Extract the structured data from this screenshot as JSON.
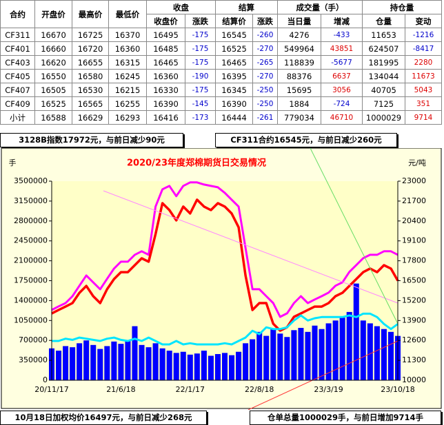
{
  "table": {
    "header_groups": [
      "合约",
      "开盘价",
      "最高价",
      "最低价",
      "收盘",
      "结算",
      "成交量（手）",
      "持仓量"
    ],
    "header_sub": [
      "收盘价",
      "涨跌",
      "结算价",
      "涨跌",
      "当日量",
      "增减",
      "仓量",
      "变动"
    ],
    "rows": [
      [
        "CF311",
        16670,
        16725,
        16370,
        16495,
        -175,
        16545,
        -260,
        4276,
        -433,
        11653,
        -1216
      ],
      [
        "CF401",
        16660,
        16720,
        16360,
        16485,
        -175,
        16525,
        -270,
        549964,
        43851,
        624507,
        -8417
      ],
      [
        "CF403",
        16620,
        16655,
        16315,
        16465,
        -175,
        16465,
        -265,
        118839,
        -5677,
        181995,
        2280
      ],
      [
        "CF405",
        16550,
        16580,
        16245,
        16360,
        -190,
        16395,
        -270,
        88376,
        6637,
        134044,
        11673
      ],
      [
        "CF407",
        16505,
        16530,
        16215,
        16330,
        -175,
        16345,
        -250,
        15695,
        3056,
        40705,
        5043
      ],
      [
        "CF409",
        16525,
        16565,
        16255,
        16390,
        -145,
        16390,
        -250,
        1884,
        -724,
        7125,
        351
      ],
      [
        "小计",
        16588,
        16629,
        16293,
        16416,
        -173,
        16444,
        -261,
        779034,
        46710,
        1000029,
        9714
      ]
    ]
  },
  "info_boxes": [
    "3128B指数17972元，与前日减少90元",
    "CF311合约16545元，与前日减少260元",
    "10月18日加权均价16497元，与前日减少268元",
    "仓单总量1000029手，与前日增加9714手"
  ],
  "chart_data": {
    "type": "combo",
    "title": "2020/23年度郑棉期货日交易情况",
    "y_label": "手",
    "y2_label": "元/吨",
    "categories": [
      "20/11/17",
      null,
      null,
      null,
      null,
      null,
      null,
      null,
      null,
      null,
      "21/6/18",
      null,
      null,
      null,
      null,
      null,
      null,
      null,
      null,
      null,
      "22/1/17",
      null,
      null,
      null,
      null,
      null,
      null,
      null,
      null,
      null,
      "22/8/18",
      null,
      null,
      null,
      null,
      null,
      null,
      null,
      null,
      null,
      "23/3/19",
      null,
      null,
      null,
      null,
      null,
      null,
      null,
      null,
      null,
      "23/10/18"
    ],
    "ylim": [
      0,
      3500000
    ],
    "yticks": [
      0,
      350000,
      700000,
      1050000,
      1400000,
      1750000,
      2100000,
      2450000,
      2800000,
      3150000,
      3500000
    ],
    "y2lim": [
      10000,
      23000
    ],
    "y2ticks": [
      10000,
      11300,
      12600,
      13900,
      15200,
      16500,
      17800,
      19100,
      20400,
      21700,
      23000
    ],
    "series": [
      {
        "type": "bar",
        "color": "#0000ff",
        "values": [
          560000,
          520000,
          600000,
          580000,
          650000,
          700000,
          620000,
          550000,
          600000,
          680000,
          640000,
          700000,
          950000,
          620000,
          580000,
          650000,
          560000,
          520000,
          480000,
          500000,
          450000,
          470000,
          520000,
          430000,
          460000,
          480000,
          440000,
          500000,
          650000,
          720000,
          850000,
          780000,
          900000,
          820000,
          760000,
          880000,
          920000,
          850000,
          960000,
          900000,
          1000000,
          1050000,
          1100000,
          1200000,
          1700000,
          1050000,
          1000000,
          950000,
          900000,
          850000,
          779034
        ]
      },
      {
        "type": "line",
        "color": "#ff00ff",
        "axis": "y2",
        "values": [
          14590,
          14820,
          15040,
          15490,
          16170,
          16840,
          16390,
          15940,
          16620,
          17290,
          17740,
          17740,
          18190,
          18420,
          18190,
          21340,
          22470,
          22690,
          22020,
          22690,
          22920,
          22920,
          22780,
          22690,
          22600,
          22240,
          21790,
          21340,
          18640,
          15940,
          15940,
          15490,
          15040,
          14140,
          14370,
          15040,
          15490,
          15040,
          15270,
          15490,
          15720,
          16170,
          16390,
          17070,
          17520,
          17970,
          18190,
          18190,
          18420,
          18420,
          18190
        ]
      },
      {
        "type": "line",
        "color": "#ff0000",
        "axis": "y2",
        "values": [
          14360,
          14590,
          14810,
          15040,
          15710,
          16160,
          15490,
          15040,
          15940,
          16610,
          17060,
          17060,
          17510,
          17960,
          17740,
          19540,
          21560,
          21110,
          20440,
          21340,
          20890,
          21790,
          21340,
          21110,
          21560,
          21340,
          20890,
          19990,
          16840,
          14590,
          15040,
          15040,
          13690,
          13240,
          13460,
          14140,
          14360,
          14590,
          14810,
          14810,
          15040,
          15490,
          15710,
          16160,
          16610,
          17060,
          17290,
          17060,
          17510,
          17290,
          16500
        ]
      },
      {
        "type": "line",
        "color": "#00e5ff",
        "values": [
          690000,
          690000,
          730000,
          710000,
          750000,
          730000,
          710000,
          690000,
          730000,
          750000,
          710000,
          690000,
          730000,
          690000,
          750000,
          690000,
          630000,
          630000,
          690000,
          630000,
          650000,
          630000,
          630000,
          630000,
          630000,
          650000,
          630000,
          690000,
          750000,
          870000,
          810000,
          930000,
          900000,
          900000,
          930000,
          1050000,
          1140000,
          1050000,
          1090000,
          1110000,
          1110000,
          1110000,
          1110000,
          1140000,
          1110000,
          1170000,
          1170000,
          1110000,
          990000,
          900000,
          990000
        ]
      }
    ]
  }
}
